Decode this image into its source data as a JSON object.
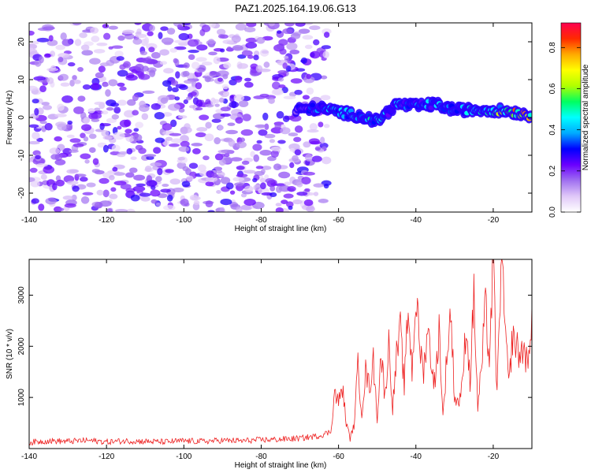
{
  "title": "PAZ1.2025.164.19.06.G13",
  "chart_data": [
    {
      "type": "heatmap",
      "xlabel": "Height of straight line (km)",
      "ylabel": "Frequency (Hz)",
      "xlim": [
        -140,
        -10
      ],
      "ylim": [
        -25,
        25
      ],
      "x_ticks": [
        -140,
        -120,
        -100,
        -80,
        -60,
        -40,
        -20
      ],
      "y_ticks": [
        -20,
        -10,
        0,
        10,
        20
      ],
      "colorbar": {
        "label": "Normalized spectral amplitude",
        "range": [
          0,
          0.92
        ],
        "ticks": [
          0.0,
          0.2,
          0.4,
          0.6,
          0.8
        ],
        "colormap": [
          "#ffffff",
          "#e0c8f8",
          "#a070f0",
          "#6a00ff",
          "#0000ff",
          "#00aaff",
          "#00ffff",
          "#00ff60",
          "#b0ff00",
          "#ffff00",
          "#ffaa00",
          "#ff2a00",
          "#ff0050"
        ]
      },
      "noise_region": {
        "x_range": [
          -140,
          -63
        ],
        "freq_range": [
          -25,
          25
        ],
        "amplitude_range": [
          0.0,
          0.15
        ]
      },
      "signal_trace": {
        "x": [
          -71,
          -65,
          -60,
          -55,
          -50,
          -45,
          -40,
          -35,
          -30,
          -25,
          -20,
          -15,
          -10
        ],
        "freq": [
          2,
          2.5,
          1.5,
          0.5,
          -1,
          3.5,
          3,
          3.5,
          2,
          2,
          2,
          1.5,
          0.5
        ],
        "peak_amplitude": [
          0.3,
          0.4,
          0.5,
          0.45,
          0.55,
          0.4,
          0.45,
          0.5,
          0.45,
          0.5,
          0.55,
          0.9,
          0.75
        ]
      },
      "grid": false
    },
    {
      "type": "line",
      "xlabel": "Height of straight line (km)",
      "ylabel": "SNR (10 * v/v)",
      "xlim": [
        -140,
        -10
      ],
      "ylim": [
        0,
        3700
      ],
      "x_ticks": [
        -140,
        -120,
        -100,
        -80,
        -60,
        -40,
        -20
      ],
      "y_ticks": [
        1000,
        2000,
        3000
      ],
      "color": "#ee2222",
      "series": [
        {
          "x": [
            -140,
            -135,
            -130,
            -125,
            -120,
            -115,
            -110,
            -105,
            -100,
            -95,
            -90,
            -85,
            -80,
            -75,
            -70,
            -65,
            -62,
            -61,
            -60,
            -59,
            -58,
            -57,
            -56,
            -55,
            -54,
            -53,
            -52,
            -51,
            -50,
            -49,
            -48,
            -47,
            -46,
            -45,
            -44,
            -43,
            -42,
            -41,
            -40,
            -39,
            -38,
            -37,
            -36,
            -35,
            -34,
            -33,
            -32,
            -31,
            -30,
            -29,
            -28,
            -27,
            -26,
            -25,
            -24,
            -23,
            -22,
            -21,
            -20,
            -19,
            -18,
            -17,
            -16,
            -15,
            -14,
            -13,
            -12,
            -11,
            -10
          ],
          "y": [
            120,
            150,
            140,
            160,
            130,
            150,
            140,
            130,
            150,
            140,
            160,
            150,
            170,
            180,
            200,
            250,
            330,
            1100,
            900,
            1200,
            500,
            200,
            450,
            1600,
            700,
            1500,
            1200,
            1700,
            600,
            1900,
            1000,
            2050,
            800,
            1800,
            2300,
            1200,
            2800,
            1500,
            3000,
            2000,
            1500,
            2400,
            1700,
            1200,
            2400,
            600,
            1800,
            2700,
            1000,
            900,
            1200,
            2500,
            1300,
            3000,
            800,
            1600,
            2800,
            1700,
            3700,
            1000,
            3700,
            2500,
            1200,
            2200,
            2000,
            1800,
            2000,
            1500,
            2800
          ]
        }
      ],
      "grid": false
    }
  ]
}
